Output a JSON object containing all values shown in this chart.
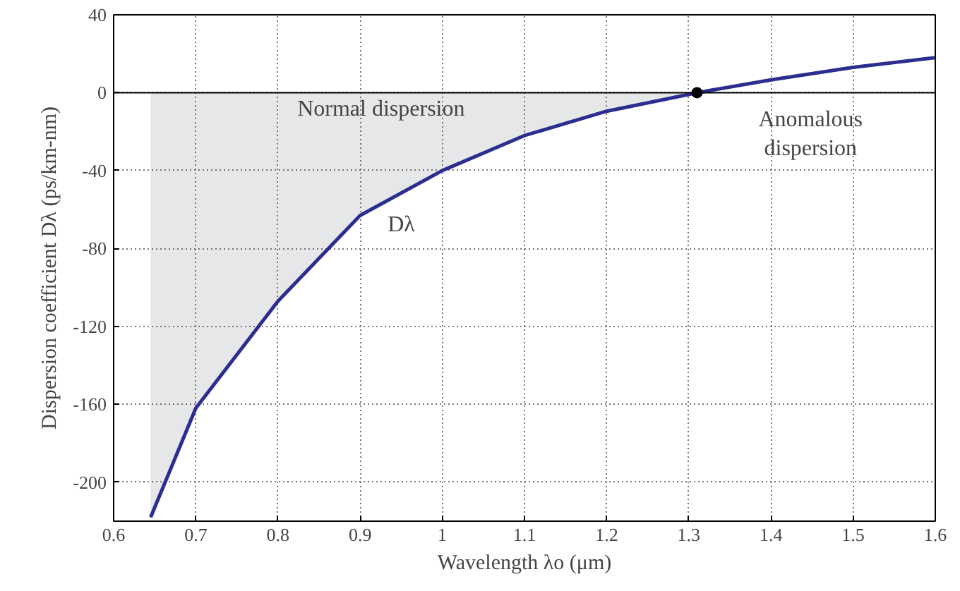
{
  "chart_data": {
    "type": "line",
    "xlabel": "Wavelength λo (μm)",
    "ylabel": "Dispersion coefficient Dλ (ps/km-nm)",
    "xlim": [
      0.6,
      1.6
    ],
    "ylim": [
      -220,
      40
    ],
    "xticks": [
      0.6,
      0.7,
      0.8,
      0.9,
      1,
      1.1,
      1.2,
      1.3,
      1.4,
      1.5,
      1.6
    ],
    "yticks": [
      -200,
      -160,
      -120,
      -80,
      -40,
      0,
      40
    ],
    "grid": true,
    "line_style": "solid",
    "series": [
      {
        "type": "area",
        "color": "#e6e7e9",
        "x": [
          0.645,
          0.7,
          0.8,
          0.9,
          1.0,
          1.1,
          1.2,
          1.31
        ],
        "values": [
          -218,
          -162,
          -107,
          -63,
          -40,
          -22,
          -9.5,
          0
        ]
      },
      {
        "color": "#2b2e8f",
        "x": [
          0.645,
          0.7,
          0.8,
          0.9,
          1.0,
          1.1,
          1.2,
          1.31,
          1.4,
          1.5,
          1.6
        ],
        "values": [
          -218,
          -162,
          -107,
          -63,
          -40,
          -22,
          -9.5,
          0,
          6.6,
          13,
          18
        ]
      },
      {
        "type": "scatter",
        "color": "#000000",
        "marker": "circle",
        "x": [
          1.31
        ],
        "values": [
          0
        ]
      }
    ],
    "ref_lines": [
      {
        "axis": "y",
        "value": 0,
        "color": "#000000"
      }
    ],
    "annotations": [
      "Normal dispersion",
      "Anomalous\ndispersion",
      "Dλ"
    ]
  }
}
